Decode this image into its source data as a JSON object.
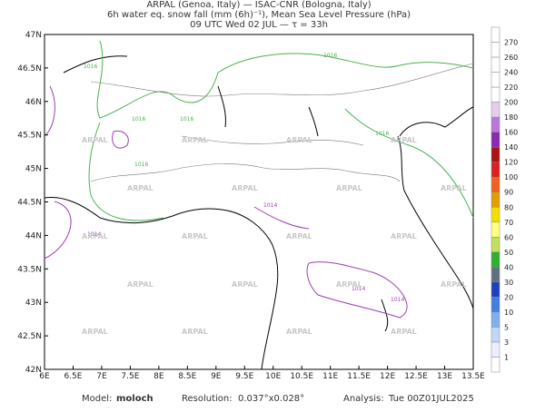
{
  "header": {
    "lines": [
      "ARPAL (Genoa, Italy)  —  ISAC-CNR (Bologna, Italy)",
      "6h water eq. snow fall (mm (6h)⁻¹), Mean Sea Level Pressure (hPa)",
      "09 UTC Wed 02 JUL  —  τ = 33h"
    ]
  },
  "map": {
    "lat_labels": [
      "47N",
      "46.5N",
      "46N",
      "45.5N",
      "45N",
      "44.5N",
      "44N",
      "43.5N",
      "43N",
      "42.5N",
      "42N"
    ],
    "lon_labels": [
      "6E",
      "6.5E",
      "7E",
      "7.5E",
      "8E",
      "8.5E",
      "9E",
      "9.5E",
      "10E",
      "10.5E",
      "11E",
      "11.5E",
      "12E",
      "12.5E",
      "13E",
      "13.5E"
    ],
    "contour_labels": [
      "1016",
      "1016",
      "1016",
      "1016",
      "1016",
      "1016",
      "1014",
      "1014",
      "1014",
      "1014"
    ],
    "watermark": "ARPAL"
  },
  "colorbar": {
    "labels": [
      "270",
      "260",
      "240",
      "220",
      "200",
      "180",
      "160",
      "140",
      "120",
      "100",
      "90",
      "80",
      "70",
      "60",
      "50",
      "40",
      "30",
      "20",
      "10",
      "5",
      "3",
      "1"
    ],
    "colors": [
      "#ffffff",
      "#ffffff",
      "#ffffff",
      "#ffffff",
      "#ffffff",
      "#e6cdf0",
      "#b878d8",
      "#8a2ab0",
      "#a81414",
      "#dc2020",
      "#f06020",
      "#e0a000",
      "#f0e000",
      "#ffff80",
      "#c0e060",
      "#30b030",
      "#607080",
      "#2040c0",
      "#4080e0",
      "#80b0f0",
      "#c0d8f8",
      "#e8f0ff",
      "#ffffff"
    ]
  },
  "footer": {
    "model_label": "Model:",
    "model": "moloch",
    "resolution_label": "Resolution:",
    "resolution": "0.037°x0.028°",
    "analysis_label": "Analysis:",
    "analysis": "Tue 00Z01JUL2025"
  }
}
